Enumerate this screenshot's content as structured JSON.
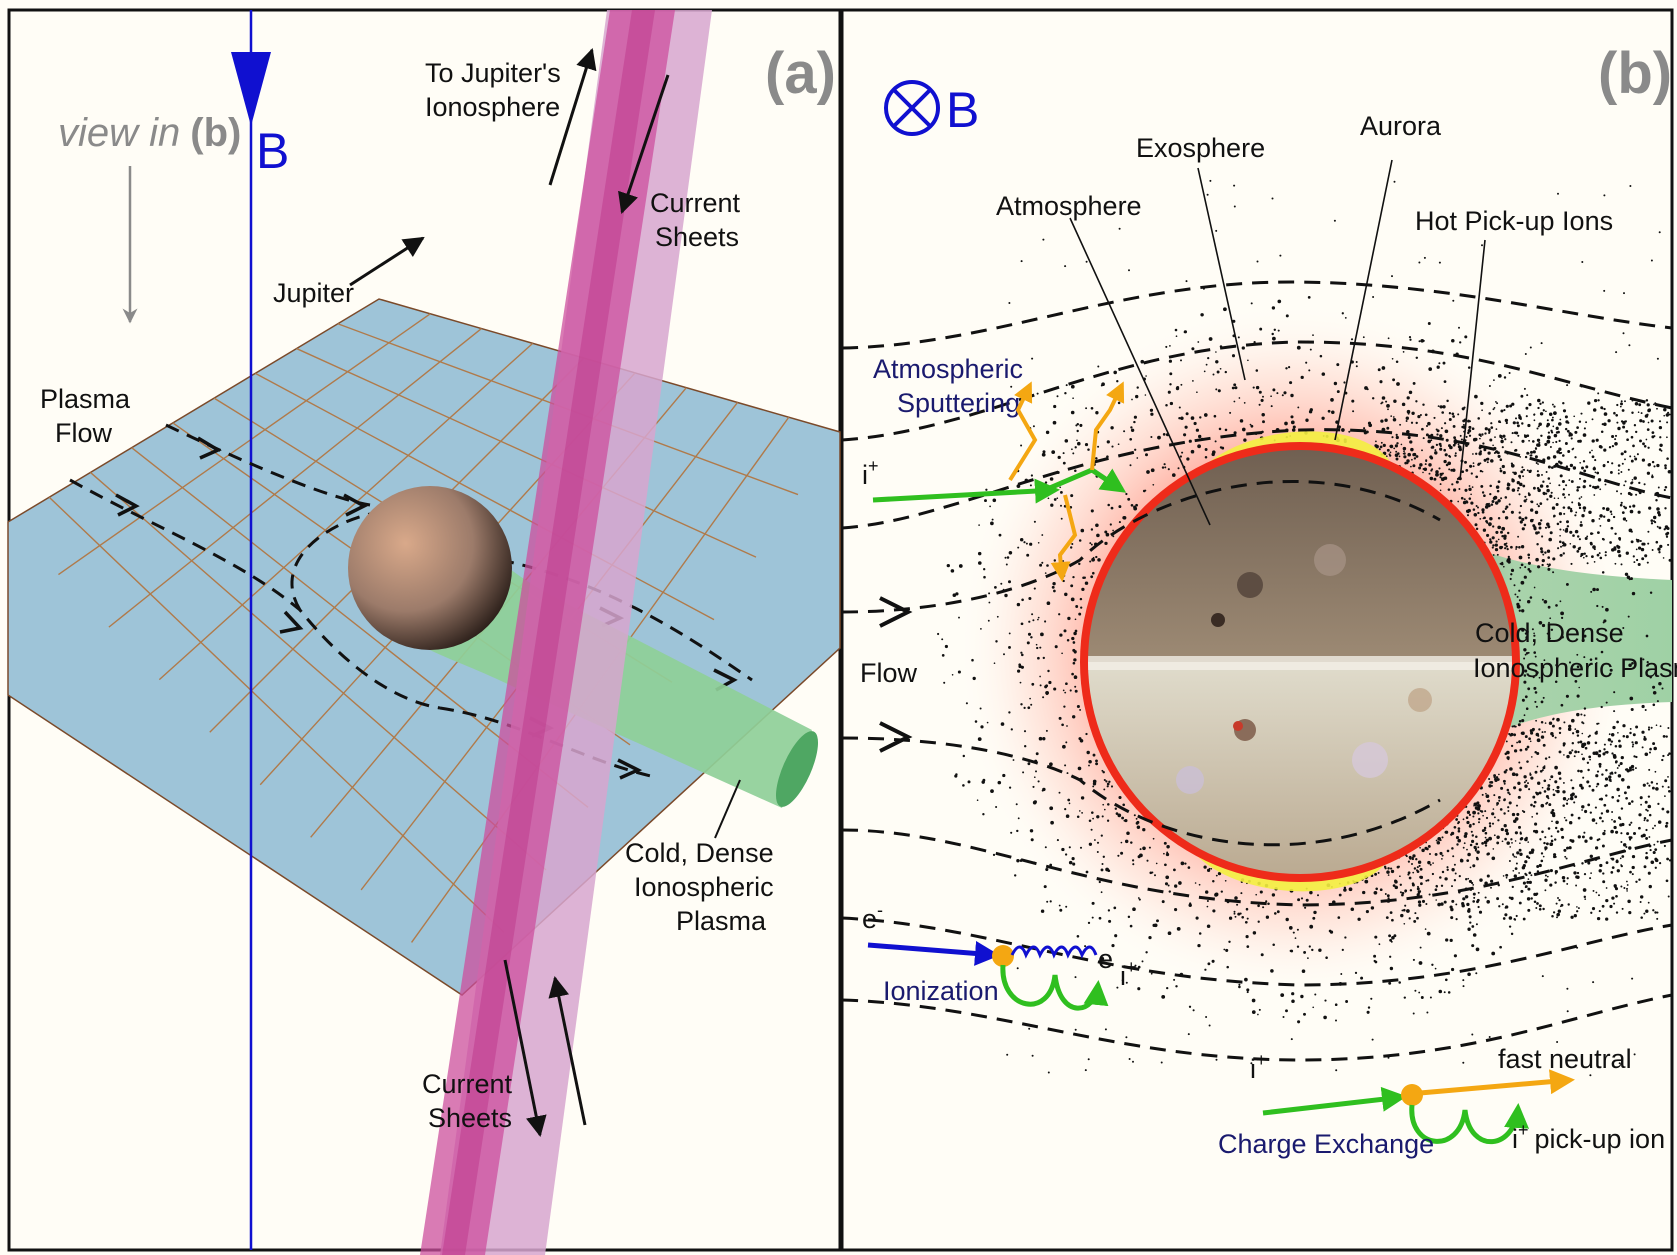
{
  "colors": {
    "background": "#fffdf6",
    "plasma_plane": "#9ec4d8",
    "plane_grid": "#b07a4a",
    "current_sheet_dark": "#cc4f9e",
    "current_sheet_light": "#d7a6cf",
    "cold_plasma_green": "#8fcf98",
    "b_field_blue": "#1010d0",
    "aurora_yellow": "#f4f040",
    "atmosphere_red": "#ee2b1a",
    "sputter_orange": "#f4a712",
    "ion_green": "#2fbf1f",
    "electron_blue": "#1010d0",
    "label_navy": "#1a1a6e",
    "label_gray": "#8a8a8a"
  },
  "panel_a": {
    "tag": "(a)",
    "view_in_text": "view in",
    "view_in_panel": "(b)",
    "b_label": "B",
    "jupiter_label": "Jupiter",
    "to_ionosphere_line1": "To Jupiter's",
    "to_ionosphere_line2": "Ionosphere",
    "current_sheets_top_line1": "Current",
    "current_sheets_top_line2": "Sheets",
    "current_sheets_bottom_line1": "Current",
    "current_sheets_bottom_line2": "Sheets",
    "plasma_flow_line1": "Plasma",
    "plasma_flow_line2": "Flow",
    "cold_plasma_line1": "Cold, Dense",
    "cold_plasma_line2": "Ionospheric",
    "cold_plasma_line3": "Plasma",
    "icons": [
      "b-field-arrow-icon",
      "view-arrow-icon",
      "jupiter-direction-arrow-icon",
      "current-direction-arrow-icon",
      "flow-chevron-icon"
    ]
  },
  "panel_b": {
    "tag": "(b)",
    "b_label": "B",
    "b_symbol_icon": "circled-cross-icon",
    "exosphere": "Exosphere",
    "aurora": "Aurora",
    "atmosphere": "Atmosphere",
    "hot_pickup_ions": "Hot Pick-up Ions",
    "atmospheric_sputtering_line1": "Atmospheric",
    "atmospheric_sputtering_line2": "Sputtering",
    "ion_symbol": "i",
    "ion_sup": "+",
    "flow": "Flow",
    "cold_plasma_line1": "Cold, Dense",
    "cold_plasma_line2": "Ionospheric Plasma",
    "electron_symbol": "e",
    "electron_sup": "-",
    "ionization": "Ionization",
    "charge_exchange": "Charge Exchange",
    "fast_neutral": "fast neutral",
    "pickup_ion": "pick-up ion"
  }
}
